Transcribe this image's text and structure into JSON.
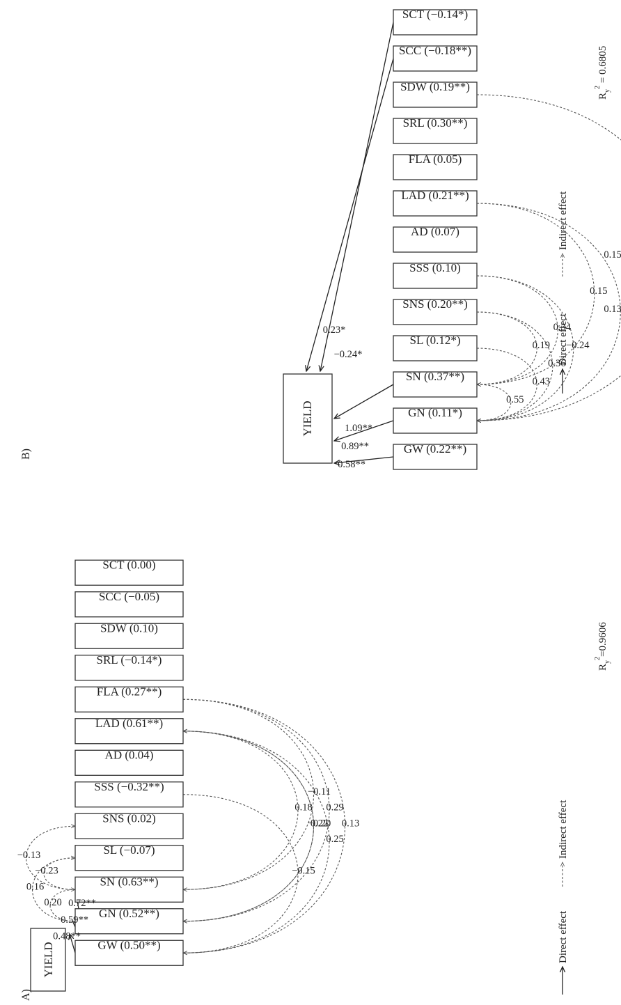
{
  "panels": [
    {
      "id": "A",
      "label": "A)",
      "yield_label": "YIELD",
      "traits": [
        "GW (0.50**)",
        "GN (0.52**)",
        "SN (0.63**)",
        "SL (−0.07)",
        "SNS (0.02)",
        "SSS (−0.32**)",
        "AD (0.04)",
        "LAD (0.61**)",
        "FLA (0.27**)",
        "SRL (−0.14*)",
        "SDW (0.10)",
        "SCC (−0.05)",
        "SCT (0.00)"
      ],
      "direct_effects": [
        {
          "from": "GW",
          "value": "0.48**"
        },
        {
          "from": "GN",
          "value": "0.59**"
        },
        {
          "from": "SN",
          "value": "0.72**"
        }
      ],
      "indirect_effects": [
        {
          "from": "GN",
          "to": "SN",
          "value": "0.20"
        },
        {
          "from": "GN",
          "to": "SL",
          "value": "0.16"
        },
        {
          "from": "SN",
          "to": "SL",
          "value": "−0.23"
        },
        {
          "from": "SN",
          "to": "SNS",
          "value": "−0.13"
        },
        {
          "from": "SSS",
          "to": "GW",
          "value": "−0.15"
        },
        {
          "from": "LAD",
          "to": "GN",
          "value": "−0.20"
        },
        {
          "from": "GW",
          "to": "LAD",
          "value": "0.25"
        },
        {
          "from": "GN",
          "to": "LAD",
          "value": "0.22"
        },
        {
          "from": "SN",
          "to": "LAD",
          "value": "0.18"
        },
        {
          "from": "FLA",
          "to": "GW",
          "value": "0.13"
        },
        {
          "from": "FLA",
          "to": "GN",
          "value": "0.29"
        },
        {
          "from": "FLA",
          "to": "SN",
          "value": "−0.11"
        }
      ],
      "r2": "R",
      "r2_sub": "y",
      "r2_sup": "2",
      "r2_value": "=0.9606",
      "legend_direct": "Direct effect",
      "legend_indirect": "Indirect effect"
    },
    {
      "id": "B",
      "label": "B)",
      "yield_label": "YIELD",
      "traits": [
        "GW (0.22**)",
        "GN (0.11*)",
        "SN (0.37**)",
        "SL (0.12*)",
        "SNS (0.20**)",
        "SSS (0.10)",
        "AD (0.07)",
        "LAD (0.21**)",
        "FLA (0.05)",
        "SRL (0.30**)",
        "SDW (0.19**)",
        "SCC (−0.18**)",
        "SCT (−0.14*)"
      ],
      "direct_effects": [
        {
          "from": "GW",
          "value": "0.58**"
        },
        {
          "from": "GN",
          "value": "0.89**"
        },
        {
          "from": "SN",
          "value": "1.09**"
        },
        {
          "from": "SCC",
          "value": "−0.24*"
        },
        {
          "from": "SCT",
          "value": "0.23*"
        }
      ],
      "indirect_effects": [
        {
          "from": "SN",
          "to": "GN",
          "value": "0.55"
        },
        {
          "from": "SL",
          "to": "GN",
          "value": "0.43"
        },
        {
          "from": "SNS",
          "to": "GN",
          "value": "0.36"
        },
        {
          "from": "SNS",
          "to": "SN",
          "value": "0.19"
        },
        {
          "from": "SSS",
          "to": "GN",
          "value": "−0.24"
        },
        {
          "from": "SSS",
          "to": "SN",
          "value": "0.34"
        },
        {
          "from": "LAD",
          "to": "SN",
          "value": "0.15"
        },
        {
          "from": "LAD",
          "to": "GN",
          "value": "0.13"
        },
        {
          "from": "SDW",
          "to": "GN",
          "value": "0.15"
        }
      ],
      "r2": "R",
      "r2_sub": "y",
      "r2_sup": "2",
      "r2_value": " = 0.6805",
      "legend_direct": "Direct effect",
      "legend_indirect": "Indirect effect"
    }
  ],
  "colors": {
    "line": "#222222",
    "dashed": "#555555",
    "box_border": "#333333"
  }
}
